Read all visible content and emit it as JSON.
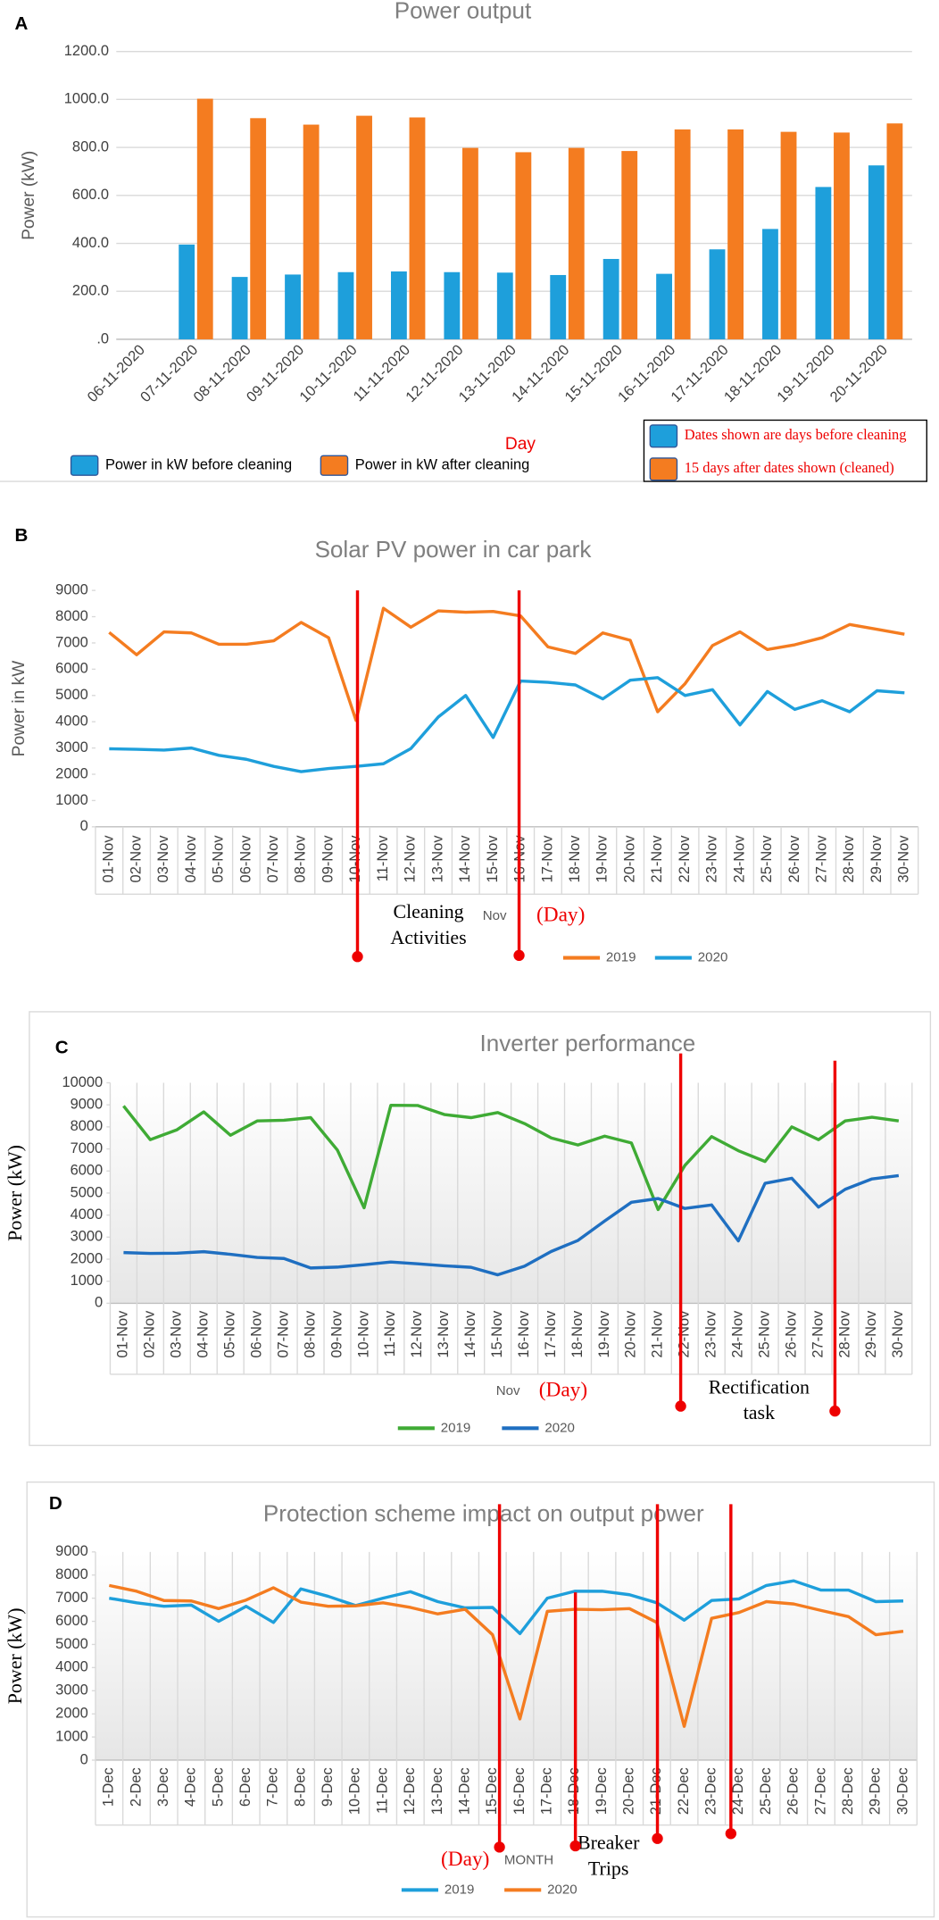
{
  "chart_data": [
    {
      "type": "bar",
      "panel": "A",
      "title": "Power output",
      "ylabel": "Power (kW)",
      "xlabel": "Day",
      "categories": [
        "06-11-2020",
        "07-11-2020",
        "08-11-2020",
        "09-11-2020",
        "10-11-2020",
        "11-11-2020",
        "12-11-2020",
        "13-11-2020",
        "14-11-2020",
        "15-11-2020",
        "16-11-2020",
        "17-11-2020",
        "18-11-2020",
        "19-11-2020",
        "20-11-2020"
      ],
      "series": [
        {
          "name": "Power in kW before cleaning",
          "color": "#1e9fdb",
          "values": [
            null,
            395,
            260,
            270,
            280,
            283,
            280,
            278,
            268,
            335,
            273,
            375,
            460,
            635,
            725
          ]
        },
        {
          "name": "Power in kW after cleaning",
          "color": "#f47c20",
          "values": [
            null,
            1003,
            922,
            895,
            932,
            925,
            798,
            780,
            798,
            785,
            875,
            875,
            865,
            862,
            900
          ]
        }
      ],
      "ylim": [
        0,
        1200
      ],
      "yticks": [
        {
          "value": 0,
          "label": ".0"
        },
        {
          "value": 200,
          "label": "200.0"
        },
        {
          "value": 400,
          "label": "400.0"
        },
        {
          "value": 600,
          "label": "600.0"
        },
        {
          "value": 800,
          "label": "800.0"
        },
        {
          "value": 1000,
          "label": "1000.0"
        },
        {
          "value": 1200,
          "label": "1200.0"
        }
      ],
      "grid": true,
      "annotations": [
        "Dates shown are days before cleaning",
        "15 days after dates shown (cleaned)"
      ]
    },
    {
      "type": "line",
      "panel": "B",
      "title": "Solar PV power in car park",
      "ylabel": "Power in kW",
      "xlabel": "Nov",
      "categories": [
        "01-Nov",
        "02-Nov",
        "03-Nov",
        "04-Nov",
        "05-Nov",
        "06-Nov",
        "07-Nov",
        "08-Nov",
        "09-Nov",
        "10-Nov",
        "11-Nov",
        "12-Nov",
        "13-Nov",
        "14-Nov",
        "15-Nov",
        "16-Nov",
        "17-Nov",
        "18-Nov",
        "19-Nov",
        "20-Nov",
        "21-Nov",
        "22-Nov",
        "23-Nov",
        "24-Nov",
        "25-Nov",
        "26-Nov",
        "27-Nov",
        "28-Nov",
        "29-Nov",
        "30-Nov"
      ],
      "series": [
        {
          "name": "2019",
          "color": "#f47c20",
          "values": [
            7400,
            6550,
            7420,
            7380,
            6950,
            6950,
            7080,
            7780,
            7200,
            4050,
            8320,
            7600,
            8220,
            8170,
            8200,
            8030,
            6850,
            6600,
            7380,
            7100,
            4380,
            5450,
            6900,
            7420,
            6750,
            6930,
            7200,
            7700,
            7520,
            7330
          ]
        },
        {
          "name": "2020",
          "color": "#1e9fdb",
          "values": [
            2970,
            2950,
            2920,
            3000,
            2720,
            2570,
            2300,
            2100,
            2220,
            2300,
            2400,
            2980,
            4180,
            5000,
            3400,
            5550,
            5500,
            5400,
            4870,
            5580,
            5680,
            5000,
            5220,
            3880,
            5150,
            4470,
            4800,
            4380,
            5180,
            5100
          ]
        }
      ],
      "ylim": [
        0,
        9000
      ],
      "yticks": [
        0,
        1000,
        2000,
        3000,
        4000,
        5000,
        6000,
        7000,
        8000,
        9000
      ],
      "grid": false,
      "annotations": [
        "Cleaning",
        "Activities",
        "(Day)"
      ]
    },
    {
      "type": "line",
      "panel": "C",
      "title": "Inverter performance",
      "ylabel": "Power (kW)",
      "xlabel": "Nov",
      "categories": [
        "01-Nov",
        "02-Nov",
        "03-Nov",
        "04-Nov",
        "05-Nov",
        "06-Nov",
        "07-Nov",
        "08-Nov",
        "09-Nov",
        "10-Nov",
        "11-Nov",
        "12-Nov",
        "13-Nov",
        "14-Nov",
        "15-Nov",
        "16-Nov",
        "17-Nov",
        "18-Nov",
        "19-Nov",
        "20-Nov",
        "21-Nov",
        "22-Nov",
        "23-Nov",
        "24-Nov",
        "25-Nov",
        "26-Nov",
        "27-Nov",
        "28-Nov",
        "29-Nov",
        "30-Nov"
      ],
      "series": [
        {
          "name": "2019",
          "color": "#3fab35",
          "values": [
            8950,
            7420,
            7870,
            8680,
            7620,
            8270,
            8300,
            8420,
            6950,
            4330,
            8980,
            8970,
            8560,
            8420,
            8650,
            8150,
            7500,
            7180,
            7580,
            7270,
            4250,
            6250,
            7560,
            6920,
            6430,
            8000,
            7420,
            8270,
            8440,
            8270
          ]
        },
        {
          "name": "2020",
          "color": "#1f6fc1",
          "values": [
            2300,
            2260,
            2270,
            2340,
            2220,
            2080,
            2030,
            1600,
            1640,
            1750,
            1870,
            1790,
            1700,
            1630,
            1290,
            1680,
            2350,
            2850,
            3730,
            4580,
            4750,
            4300,
            4460,
            2830,
            5440,
            5670,
            4360,
            5170,
            5640,
            5790
          ]
        }
      ],
      "ylim": [
        0,
        10000
      ],
      "yticks": [
        0,
        1000,
        2000,
        3000,
        4000,
        5000,
        6000,
        7000,
        8000,
        9000,
        10000
      ],
      "grid": false,
      "annotations": [
        "(Day)",
        "Rectification",
        "task"
      ]
    },
    {
      "type": "line",
      "panel": "D",
      "title": "Protection scheme impact on output power",
      "ylabel": "Power (kW)",
      "xlabel": "MONTH",
      "categories": [
        "1-Dec",
        "2-Dec",
        "3-Dec",
        "4-Dec",
        "5-Dec",
        "6-Dec",
        "7-Dec",
        "8-Dec",
        "9-Dec",
        "10-Dec",
        "11-Dec",
        "12-Dec",
        "13-Dec",
        "14-Dec",
        "15-Dec",
        "16-Dec",
        "17-Dec",
        "18-Dec",
        "19-Dec",
        "20-Dec",
        "21-Dec",
        "22-Dec",
        "23-Dec",
        "24-Dec",
        "25-Dec",
        "26-Dec",
        "27-Dec",
        "28-Dec",
        "29-Dec",
        "30-Dec"
      ],
      "series": [
        {
          "name": "2019",
          "color": "#1e9fdb",
          "values": [
            7000,
            6800,
            6650,
            6700,
            6000,
            6650,
            5950,
            7400,
            7080,
            6680,
            7000,
            7280,
            6850,
            6580,
            6600,
            5470,
            7000,
            7300,
            7300,
            7150,
            6800,
            6050,
            6900,
            6970,
            7550,
            7750,
            7350,
            7350,
            6850,
            6880
          ]
        },
        {
          "name": "2020",
          "color": "#f47c20",
          "values": [
            7550,
            7300,
            6900,
            6880,
            6550,
            6920,
            7450,
            6830,
            6650,
            6670,
            6800,
            6600,
            6320,
            6520,
            5420,
            1780,
            6430,
            6520,
            6500,
            6550,
            5950,
            1460,
            6130,
            6380,
            6850,
            6750,
            6470,
            6200,
            5420,
            5570
          ]
        }
      ],
      "ylim": [
        0,
        9000
      ],
      "yticks": [
        0,
        1000,
        2000,
        3000,
        4000,
        5000,
        6000,
        7000,
        8000,
        9000
      ],
      "grid": false,
      "annotations": [
        "(Day)",
        "Breaker",
        "Trips"
      ]
    }
  ]
}
